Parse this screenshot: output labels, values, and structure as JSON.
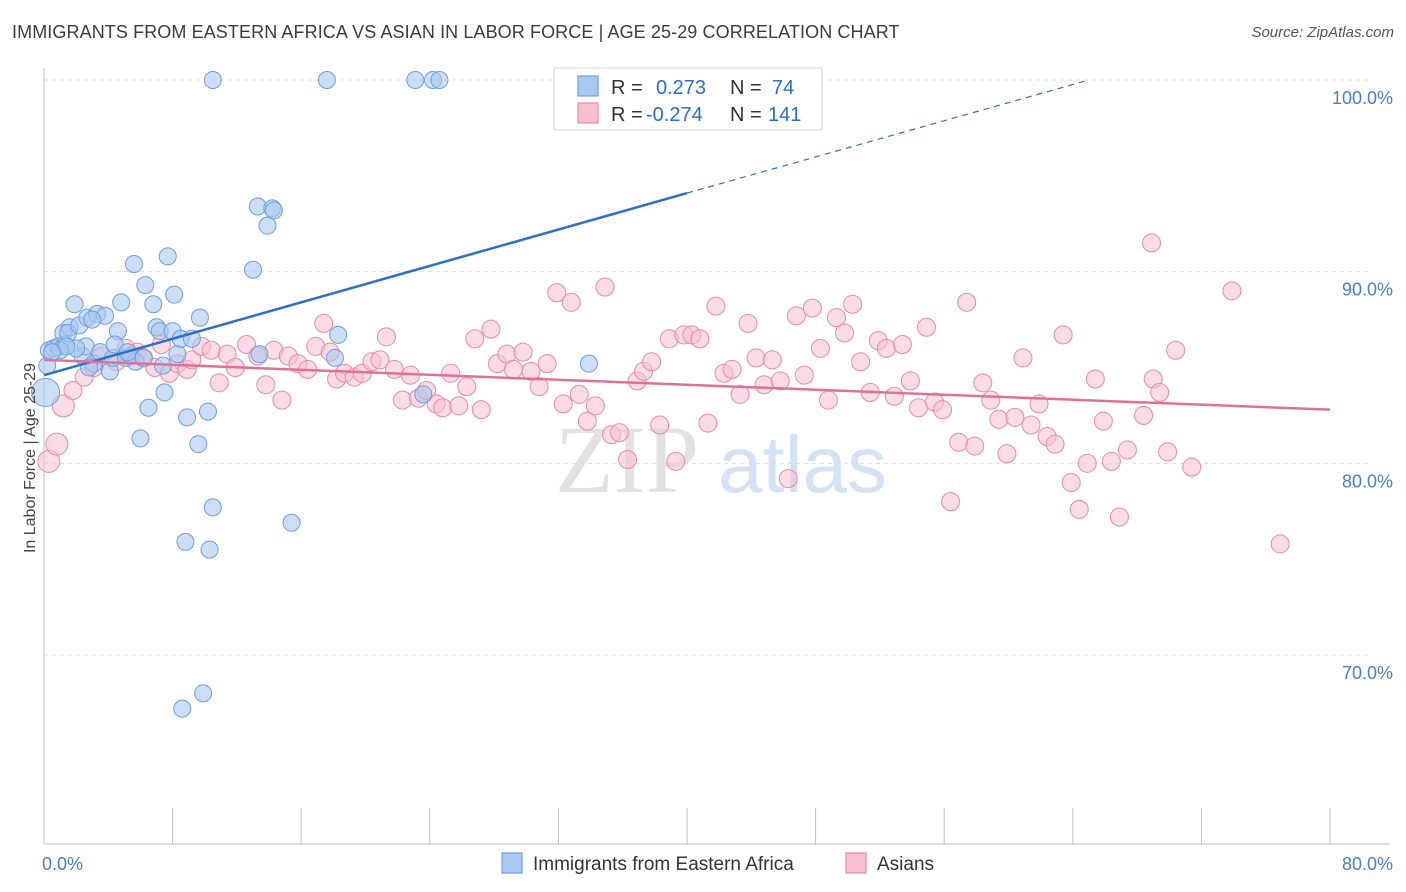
{
  "title": "IMMIGRANTS FROM EASTERN AFRICA VS ASIAN IN LABOR FORCE | AGE 25-29 CORRELATION CHART",
  "source": "Source: ZipAtlas.com",
  "watermark": {
    "zip": "ZIP",
    "atlas": "atlas"
  },
  "colors": {
    "blue_fill": "#a9c8f0",
    "blue_stroke": "#6d9fe0",
    "blue_line": "#2f6fcc",
    "pink_fill": "#f7bfd0",
    "pink_stroke": "#e98aa8",
    "pink_line": "#e0709a",
    "grid": "#dddddd",
    "tick_text": "#4a7fc8"
  },
  "legend": {
    "rows": [
      {
        "r_label": "R =",
        "r_value": "0.273",
        "n_label": "N =",
        "n_value": "74"
      },
      {
        "r_label": "R =",
        "r_value": "-0.274",
        "n_label": "N =",
        "n_value": "141"
      }
    ]
  },
  "chart_data": {
    "type": "scatter",
    "title": "IMMIGRANTS FROM EASTERN AFRICA VS ASIAN IN LABOR FORCE | AGE 25-29 CORRELATION CHART",
    "xlabel": "",
    "ylabel": "In Labor Force | Age 25-29",
    "xlim": [
      0,
      80
    ],
    "ylim": [
      61,
      101.5
    ],
    "x_tick_labels": [
      {
        "value": 0,
        "label": "0.0%"
      },
      {
        "value": 80,
        "label": "80.0%"
      }
    ],
    "y_tick_labels": [
      {
        "value": 100,
        "label": "100.0%"
      },
      {
        "value": 90,
        "label": "90.0%"
      },
      {
        "value": 80,
        "label": "80.0%"
      },
      {
        "value": 70,
        "label": "70.0%"
      }
    ],
    "grid": true,
    "series": [
      {
        "name": "Immigrants from Eastern Africa",
        "color": "#a9c8f0",
        "trend": {
          "x": [
            0,
            40
          ],
          "y": [
            84.6,
            94.1
          ],
          "dashed_to": {
            "x": 65,
            "y": 100
          }
        },
        "points": [
          [
            0.1,
            83.7
          ],
          [
            0.2,
            85.1
          ],
          [
            0.3,
            85.9
          ],
          [
            0.6,
            86.0
          ],
          [
            0.9,
            86.1
          ],
          [
            1.2,
            86.8
          ],
          [
            1.3,
            86.2
          ],
          [
            1.6,
            87.1
          ],
          [
            1.5,
            86.8
          ],
          [
            1.9,
            88.3
          ],
          [
            2.2,
            87.2
          ],
          [
            2.4,
            85.6
          ],
          [
            2.6,
            86.1
          ],
          [
            2.7,
            87.6
          ],
          [
            3.1,
            85.2
          ],
          [
            3.3,
            87.8
          ],
          [
            3.5,
            85.8
          ],
          [
            3.8,
            87.7
          ],
          [
            4.1,
            84.8
          ],
          [
            4.3,
            85.5
          ],
          [
            4.6,
            86.9
          ],
          [
            4.8,
            88.4
          ],
          [
            5.1,
            85.5
          ],
          [
            5.4,
            85.6
          ],
          [
            5.7,
            85.3
          ],
          [
            5.6,
            90.4
          ],
          [
            6.0,
            81.3
          ],
          [
            6.3,
            89.3
          ],
          [
            6.5,
            82.9
          ],
          [
            6.8,
            88.3
          ],
          [
            7.0,
            87.1
          ],
          [
            7.2,
            86.9
          ],
          [
            7.4,
            85.1
          ],
          [
            7.5,
            83.7
          ],
          [
            7.7,
            90.8
          ],
          [
            8.0,
            86.9
          ],
          [
            8.1,
            88.8
          ],
          [
            8.3,
            85.7
          ],
          [
            8.5,
            86.5
          ],
          [
            8.6,
            67.2
          ],
          [
            8.8,
            75.9
          ],
          [
            8.9,
            82.4
          ],
          [
            9.6,
            81.0
          ],
          [
            9.7,
            87.6
          ],
          [
            9.9,
            68.0
          ],
          [
            10.2,
            82.7
          ],
          [
            10.3,
            75.5
          ],
          [
            10.5,
            77.7
          ],
          [
            10.5,
            100.0
          ],
          [
            13.0,
            90.1
          ],
          [
            13.3,
            93.4
          ],
          [
            13.4,
            85.7
          ],
          [
            13.9,
            92.4
          ],
          [
            14.2,
            93.3
          ],
          [
            14.3,
            93.2
          ],
          [
            15.4,
            76.9
          ],
          [
            17.6,
            100.0
          ],
          [
            18.1,
            85.5
          ],
          [
            18.3,
            86.7
          ],
          [
            23.1,
            100.0
          ],
          [
            23.6,
            83.6
          ],
          [
            24.2,
            100.0
          ],
          [
            24.6,
            100.0
          ],
          [
            33.9,
            85.2
          ],
          [
            1.0,
            85.9
          ],
          [
            2.0,
            86.0
          ],
          [
            3.0,
            87.5
          ],
          [
            4.4,
            86.2
          ],
          [
            5.2,
            85.8
          ],
          [
            6.2,
            85.5
          ],
          [
            1.4,
            86.1
          ],
          [
            0.5,
            85.8
          ],
          [
            2.8,
            85.0
          ],
          [
            9.2,
            86.5
          ]
        ]
      },
      {
        "name": "Asians",
        "color": "#f7bfd0",
        "trend": {
          "x": [
            0,
            80
          ],
          "y": [
            85.4,
            82.8
          ]
        },
        "points": [
          [
            0.3,
            80.1
          ],
          [
            0.8,
            81.0
          ],
          [
            1.2,
            83.0
          ],
          [
            1.8,
            83.8
          ],
          [
            2.5,
            84.5
          ],
          [
            3.1,
            85.0
          ],
          [
            3.6,
            85.6
          ],
          [
            4.5,
            85.3
          ],
          [
            5.1,
            86.0
          ],
          [
            5.8,
            85.8
          ],
          [
            6.2,
            85.5
          ],
          [
            6.9,
            85.0
          ],
          [
            7.3,
            86.2
          ],
          [
            7.8,
            84.7
          ],
          [
            8.3,
            85.2
          ],
          [
            8.9,
            84.9
          ],
          [
            9.2,
            85.4
          ],
          [
            9.8,
            86.1
          ],
          [
            10.4,
            85.9
          ],
          [
            10.9,
            84.2
          ],
          [
            11.4,
            85.7
          ],
          [
            11.9,
            85.0
          ],
          [
            12.6,
            86.2
          ],
          [
            13.3,
            85.6
          ],
          [
            13.8,
            84.1
          ],
          [
            14.3,
            85.9
          ],
          [
            14.8,
            83.3
          ],
          [
            15.2,
            85.6
          ],
          [
            15.8,
            85.2
          ],
          [
            16.4,
            84.9
          ],
          [
            16.9,
            86.1
          ],
          [
            17.4,
            87.3
          ],
          [
            17.8,
            85.8
          ],
          [
            18.2,
            84.4
          ],
          [
            18.7,
            84.7
          ],
          [
            19.3,
            84.5
          ],
          [
            19.8,
            84.7
          ],
          [
            20.4,
            85.3
          ],
          [
            20.9,
            85.4
          ],
          [
            21.3,
            86.6
          ],
          [
            21.8,
            84.9
          ],
          [
            22.3,
            83.3
          ],
          [
            22.8,
            84.6
          ],
          [
            23.3,
            83.4
          ],
          [
            23.8,
            83.8
          ],
          [
            24.4,
            83.1
          ],
          [
            24.8,
            82.9
          ],
          [
            25.3,
            84.7
          ],
          [
            25.8,
            83.0
          ],
          [
            26.3,
            84.0
          ],
          [
            26.8,
            86.5
          ],
          [
            27.2,
            82.8
          ],
          [
            27.8,
            87.0
          ],
          [
            28.2,
            85.2
          ],
          [
            28.8,
            85.7
          ],
          [
            29.2,
            84.9
          ],
          [
            29.8,
            85.8
          ],
          [
            30.3,
            84.8
          ],
          [
            30.8,
            84.0
          ],
          [
            31.3,
            85.2
          ],
          [
            31.9,
            88.9
          ],
          [
            32.3,
            83.1
          ],
          [
            32.8,
            88.4
          ],
          [
            33.3,
            83.6
          ],
          [
            33.8,
            82.2
          ],
          [
            34.3,
            83.0
          ],
          [
            34.9,
            89.2
          ],
          [
            35.3,
            81.5
          ],
          [
            35.8,
            81.6
          ],
          [
            36.3,
            80.2
          ],
          [
            36.9,
            84.3
          ],
          [
            37.3,
            84.8
          ],
          [
            37.8,
            85.3
          ],
          [
            38.3,
            82.0
          ],
          [
            38.9,
            86.5
          ],
          [
            39.3,
            80.1
          ],
          [
            39.8,
            86.7
          ],
          [
            40.3,
            86.7
          ],
          [
            40.8,
            86.5
          ],
          [
            41.3,
            82.1
          ],
          [
            41.8,
            88.2
          ],
          [
            42.3,
            84.7
          ],
          [
            42.8,
            84.9
          ],
          [
            43.3,
            83.6
          ],
          [
            43.8,
            87.3
          ],
          [
            44.3,
            85.5
          ],
          [
            44.8,
            84.1
          ],
          [
            45.3,
            85.4
          ],
          [
            45.8,
            84.3
          ],
          [
            46.3,
            79.2
          ],
          [
            46.8,
            87.7
          ],
          [
            47.3,
            84.6
          ],
          [
            47.8,
            88.1
          ],
          [
            48.3,
            86.0
          ],
          [
            48.8,
            83.3
          ],
          [
            49.3,
            87.6
          ],
          [
            49.8,
            86.8
          ],
          [
            50.3,
            88.3
          ],
          [
            50.8,
            85.3
          ],
          [
            51.4,
            83.7
          ],
          [
            51.9,
            86.4
          ],
          [
            52.4,
            86.0
          ],
          [
            52.9,
            83.5
          ],
          [
            53.4,
            86.2
          ],
          [
            53.9,
            84.3
          ],
          [
            54.4,
            82.9
          ],
          [
            54.9,
            87.1
          ],
          [
            55.4,
            83.2
          ],
          [
            55.9,
            82.8
          ],
          [
            56.4,
            78.0
          ],
          [
            56.9,
            81.1
          ],
          [
            57.4,
            88.4
          ],
          [
            57.9,
            80.9
          ],
          [
            58.4,
            84.2
          ],
          [
            58.9,
            83.3
          ],
          [
            59.4,
            82.3
          ],
          [
            59.9,
            80.5
          ],
          [
            60.4,
            82.4
          ],
          [
            60.9,
            85.5
          ],
          [
            61.4,
            82.0
          ],
          [
            61.9,
            83.1
          ],
          [
            62.4,
            81.4
          ],
          [
            62.9,
            81.0
          ],
          [
            63.4,
            86.7
          ],
          [
            63.9,
            79.0
          ],
          [
            64.4,
            77.6
          ],
          [
            64.9,
            80.0
          ],
          [
            65.4,
            84.4
          ],
          [
            65.9,
            82.2
          ],
          [
            66.4,
            80.1
          ],
          [
            66.9,
            77.2
          ],
          [
            67.4,
            80.7
          ],
          [
            68.4,
            82.5
          ],
          [
            69.0,
            84.4
          ],
          [
            69.4,
            83.7
          ],
          [
            69.9,
            80.6
          ],
          [
            70.4,
            85.9
          ],
          [
            71.4,
            79.8
          ],
          [
            73.9,
            89.0
          ],
          [
            76.9,
            75.8
          ],
          [
            68.9,
            91.5
          ]
        ]
      }
    ]
  },
  "bottom_legend": {
    "items": [
      "Immigrants from Eastern Africa",
      "Asians"
    ]
  }
}
